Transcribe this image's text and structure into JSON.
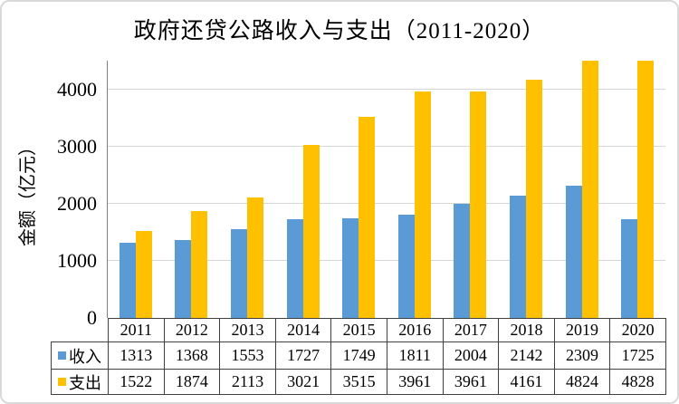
{
  "chart_data": {
    "type": "bar",
    "title": "政府还贷公路收入与支出（2011-2020）",
    "ylabel": "金额（亿元）",
    "xlabel": "",
    "categories": [
      "2011",
      "2012",
      "2013",
      "2014",
      "2015",
      "2016",
      "2017",
      "2018",
      "2019",
      "2020"
    ],
    "series": [
      {
        "key": "income",
        "name": "收入",
        "color": "#5B9BD5",
        "values": [
          1313,
          1368,
          1553,
          1727,
          1749,
          1811,
          2004,
          2142,
          2309,
          1725
        ]
      },
      {
        "key": "expense",
        "name": "支出",
        "color": "#FFC000",
        "values": [
          1522,
          1874,
          2113,
          3021,
          3515,
          3961,
          3961,
          4161,
          4824,
          4828
        ]
      }
    ],
    "ylim": [
      0,
      4500
    ],
    "yticks": [
      0,
      1000,
      2000,
      3000,
      4000
    ],
    "grid": true,
    "legend_position": "data-table-left",
    "bars_clipped_at_ymax": true
  },
  "colors": {
    "grid": "#D6D6D6",
    "axis": "#7F7F7F",
    "table_border": "#404040",
    "frame": "#D9D9D9",
    "text": "#000000"
  }
}
